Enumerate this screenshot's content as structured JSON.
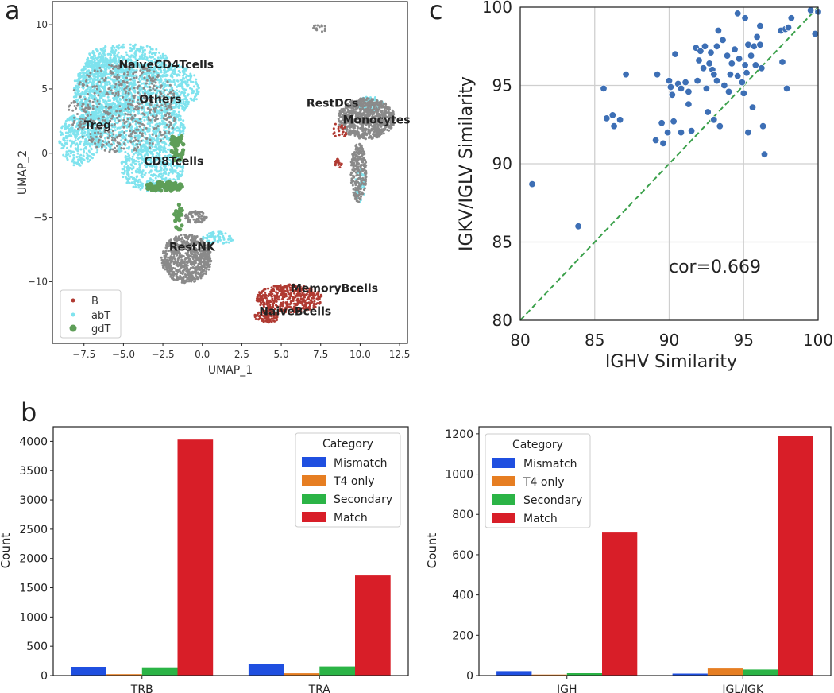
{
  "panels": {
    "a": "a",
    "b": "b",
    "c": "c"
  },
  "colors": {
    "B": "#b03a32",
    "abT": "#7fe3ee",
    "gdT": "#5e9e58",
    "grey": "#8a8a8a",
    "mismatch": "#1f4fe0",
    "t4only": "#e67e22",
    "secondary": "#2bb446",
    "match": "#d81e28",
    "scatter": "#3d6fb5",
    "diag": "#3aa04a"
  },
  "chart_data": [
    {
      "id": "umap",
      "type": "scatter",
      "title": "",
      "xlabel": "UMAP_1",
      "ylabel": "UMAP_2",
      "xlim": [
        -9.5,
        13
      ],
      "ylim": [
        -14.8,
        11.8
      ],
      "xticks": [
        "−7.5",
        "−5.0",
        "−2.5",
        "0.0",
        "2.5",
        "5.0",
        "7.5",
        "10.0",
        "12.5"
      ],
      "xtick_values": [
        -7.5,
        -5,
        -2.5,
        0,
        2.5,
        5,
        7.5,
        10,
        12.5
      ],
      "yticks": [
        "−10",
        "−5",
        "0",
        "5",
        "10"
      ],
      "ytick_values": [
        -10,
        -5,
        0,
        5,
        10
      ],
      "legend": [
        {
          "label": "B",
          "key": "B"
        },
        {
          "label": "abT",
          "key": "abT"
        },
        {
          "label": "gdT",
          "key": "gdT"
        }
      ],
      "cluster_labels": [
        {
          "text": "NaiveCD4Tcells",
          "x": -5.3,
          "y": 6.6
        },
        {
          "text": "Others",
          "x": -4.0,
          "y": 3.9
        },
        {
          "text": "Treg",
          "x": -7.5,
          "y": 1.9
        },
        {
          "text": "CD8Tcells",
          "x": -3.7,
          "y": -0.9
        },
        {
          "text": "RestDCs",
          "x": 6.6,
          "y": 3.6
        },
        {
          "text": "Monocytes",
          "x": 8.9,
          "y": 2.3
        },
        {
          "text": "RestNK",
          "x": -2.1,
          "y": -7.6
        },
        {
          "text": "MemoryBcells",
          "x": 5.6,
          "y": -10.8
        },
        {
          "text": "NaiveBcells",
          "x": 3.6,
          "y": -12.6
        }
      ],
      "clusters": [
        {
          "key": "abT",
          "cx": -6.2,
          "cy": 5.0,
          "rx": 2.0,
          "ry": 2.5,
          "n": 900
        },
        {
          "key": "abT",
          "cx": -2.2,
          "cy": 5.0,
          "rx": 2.0,
          "ry": 2.0,
          "n": 500
        },
        {
          "key": "abT",
          "cx": -4.5,
          "cy": 2.0,
          "rx": 3.5,
          "ry": 2.0,
          "n": 800
        },
        {
          "key": "abT",
          "cx": -7.8,
          "cy": 1.0,
          "rx": 1.3,
          "ry": 2.0,
          "n": 300
        },
        {
          "key": "abT",
          "cx": -3.2,
          "cy": -1.2,
          "rx": 2.0,
          "ry": 1.8,
          "n": 400
        },
        {
          "key": "abT",
          "cx": -4.8,
          "cy": 7.2,
          "rx": 2.6,
          "ry": 1.3,
          "n": 400
        },
        {
          "key": "abT",
          "cx": 1.0,
          "cy": -6.6,
          "rx": 1.0,
          "ry": 0.5,
          "n": 70
        },
        {
          "key": "abT",
          "cx": 10.6,
          "cy": 3.8,
          "rx": 0.9,
          "ry": 0.6,
          "n": 80
        },
        {
          "key": "abT",
          "cx": 10.0,
          "cy": -2.5,
          "rx": 0.3,
          "ry": 1.3,
          "n": 40
        },
        {
          "key": "grey",
          "cx": -5.0,
          "cy": 3.5,
          "rx": 3.5,
          "ry": 3.5,
          "n": 500
        },
        {
          "key": "grey",
          "cx": -1.0,
          "cy": -8.2,
          "rx": 1.6,
          "ry": 1.9,
          "n": 700
        },
        {
          "key": "grey",
          "cx": -0.4,
          "cy": -5.0,
          "rx": 0.7,
          "ry": 0.5,
          "n": 70
        },
        {
          "key": "grey",
          "cx": 10.4,
          "cy": 2.7,
          "rx": 1.8,
          "ry": 1.6,
          "n": 800
        },
        {
          "key": "grey",
          "cx": 9.9,
          "cy": -1.5,
          "rx": 0.5,
          "ry": 2.3,
          "n": 250
        },
        {
          "key": "grey",
          "cx": 7.4,
          "cy": 9.7,
          "rx": 0.5,
          "ry": 0.3,
          "n": 15
        },
        {
          "key": "gdT",
          "cx": -2.4,
          "cy": -2.6,
          "rx": 1.2,
          "ry": 0.35,
          "n": 90
        },
        {
          "key": "gdT",
          "cx": -1.6,
          "cy": 0.5,
          "rx": 0.4,
          "ry": 1.2,
          "n": 50
        },
        {
          "key": "gdT",
          "cx": -1.5,
          "cy": -5.0,
          "rx": 0.3,
          "ry": 1.0,
          "n": 25
        },
        {
          "key": "B",
          "cx": 5.5,
          "cy": -11.3,
          "rx": 2.1,
          "ry": 1.1,
          "n": 450
        },
        {
          "key": "B",
          "cx": 4.1,
          "cy": -12.7,
          "rx": 0.8,
          "ry": 0.5,
          "n": 100
        },
        {
          "key": "B",
          "cx": 8.7,
          "cy": 1.8,
          "rx": 0.6,
          "ry": 0.6,
          "n": 20
        },
        {
          "key": "B",
          "cx": 8.6,
          "cy": -0.8,
          "rx": 0.25,
          "ry": 0.35,
          "n": 20
        }
      ]
    },
    {
      "id": "similarity",
      "type": "scatter",
      "xlabel": "IGHV Similarity",
      "ylabel": "IGKV/IGLV Similarity",
      "xlim": [
        80,
        100
      ],
      "ylim": [
        80,
        100
      ],
      "xticks": [
        "80",
        "85",
        "90",
        "95",
        "100"
      ],
      "yticks": [
        "80",
        "85",
        "90",
        "95",
        "100"
      ],
      "annotation": "cor=0.669",
      "diagonal": true,
      "points": [
        [
          80.8,
          88.7
        ],
        [
          83.9,
          86.0
        ],
        [
          85.6,
          94.8
        ],
        [
          85.8,
          92.9
        ],
        [
          86.2,
          93.1
        ],
        [
          86.3,
          92.4
        ],
        [
          86.7,
          92.8
        ],
        [
          87.1,
          95.7
        ],
        [
          89.1,
          91.5
        ],
        [
          89.2,
          95.7
        ],
        [
          89.5,
          92.6
        ],
        [
          89.6,
          91.3
        ],
        [
          89.9,
          92.0
        ],
        [
          90.0,
          95.3
        ],
        [
          90.1,
          94.9
        ],
        [
          90.2,
          94.4
        ],
        [
          90.3,
          92.7
        ],
        [
          90.4,
          97.0
        ],
        [
          90.6,
          95.1
        ],
        [
          90.8,
          94.8
        ],
        [
          90.8,
          92.0
        ],
        [
          91.1,
          95.2
        ],
        [
          91.3,
          93.8
        ],
        [
          91.3,
          94.6
        ],
        [
          91.5,
          92.1
        ],
        [
          91.8,
          97.4
        ],
        [
          91.9,
          95.3
        ],
        [
          92.0,
          96.6
        ],
        [
          92.1,
          97.2
        ],
        [
          92.3,
          96.1
        ],
        [
          92.4,
          97.5
        ],
        [
          92.5,
          94.8
        ],
        [
          92.6,
          93.3
        ],
        [
          92.7,
          96.4
        ],
        [
          92.8,
          97.1
        ],
        [
          92.9,
          96.0
        ],
        [
          93.0,
          92.8
        ],
        [
          93.0,
          95.7
        ],
        [
          93.2,
          97.5
        ],
        [
          93.2,
          95.3
        ],
        [
          93.3,
          98.5
        ],
        [
          93.4,
          92.4
        ],
        [
          93.6,
          97.9
        ],
        [
          93.7,
          95.0
        ],
        [
          93.9,
          96.9
        ],
        [
          94.0,
          94.6
        ],
        [
          94.1,
          95.7
        ],
        [
          94.2,
          96.4
        ],
        [
          94.4,
          97.3
        ],
        [
          94.6,
          99.6
        ],
        [
          94.6,
          95.6
        ],
        [
          94.7,
          96.7
        ],
        [
          94.9,
          95.2
        ],
        [
          95.0,
          94.5
        ],
        [
          95.1,
          99.3
        ],
        [
          95.1,
          96.3
        ],
        [
          95.2,
          95.8
        ],
        [
          95.3,
          97.6
        ],
        [
          95.3,
          92.0
        ],
        [
          95.5,
          96.9
        ],
        [
          95.6,
          93.6
        ],
        [
          95.7,
          97.5
        ],
        [
          95.8,
          96.3
        ],
        [
          95.9,
          98.1
        ],
        [
          96.1,
          98.8
        ],
        [
          96.1,
          97.6
        ],
        [
          96.2,
          96.1
        ],
        [
          96.3,
          92.4
        ],
        [
          96.4,
          90.6
        ],
        [
          97.5,
          98.5
        ],
        [
          97.6,
          96.5
        ],
        [
          97.8,
          98.6
        ],
        [
          97.9,
          94.8
        ],
        [
          98.0,
          98.7
        ],
        [
          98.2,
          99.3
        ],
        [
          99.5,
          99.8
        ],
        [
          99.8,
          98.3
        ],
        [
          100.0,
          99.7
        ]
      ]
    },
    {
      "id": "tcr-bar",
      "type": "bar",
      "title": "",
      "xlabel": "",
      "ylabel": "Count",
      "ylim": [
        0,
        4250
      ],
      "yticks": [
        0,
        500,
        1000,
        1500,
        2000,
        2500,
        3000,
        3500,
        4000
      ],
      "categories": [
        "TRB",
        "TRA"
      ],
      "legend_title": "Category",
      "series": [
        {
          "name": "Mismatch",
          "color_key": "mismatch",
          "values": [
            150,
            195
          ]
        },
        {
          "name": "T4 only",
          "color_key": "t4only",
          "values": [
            25,
            40
          ]
        },
        {
          "name": "Secondary",
          "color_key": "secondary",
          "values": [
            140,
            155
          ]
        },
        {
          "name": "Match",
          "color_key": "match",
          "values": [
            4030,
            1710
          ]
        }
      ]
    },
    {
      "id": "bcr-bar",
      "type": "bar",
      "title": "",
      "xlabel": "",
      "ylabel": "Count",
      "ylim": [
        0,
        1235
      ],
      "yticks": [
        0,
        200,
        400,
        600,
        800,
        1000,
        1200
      ],
      "categories": [
        "IGH",
        "IGL/IGK"
      ],
      "legend_title": "Category",
      "series": [
        {
          "name": "Mismatch",
          "color_key": "mismatch",
          "values": [
            22,
            10
          ]
        },
        {
          "name": "T4 only",
          "color_key": "t4only",
          "values": [
            5,
            35
          ]
        },
        {
          "name": "Secondary",
          "color_key": "secondary",
          "values": [
            12,
            30
          ]
        },
        {
          "name": "Match",
          "color_key": "match",
          "values": [
            710,
            1190
          ]
        }
      ]
    }
  ]
}
